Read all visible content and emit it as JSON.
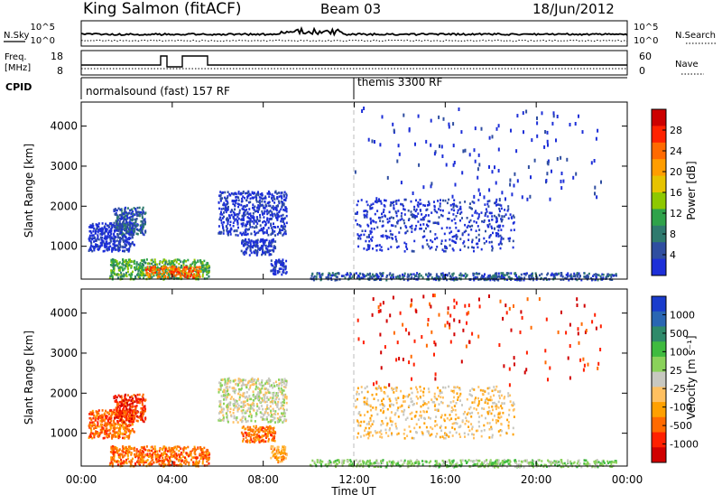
{
  "header": {
    "station": "King Salmon (fitACF)",
    "beam": "Beam 03",
    "date": "18/Jun/2012"
  },
  "summary": {
    "nsky_label": "N.Sky",
    "nsearch_label": "N.Search",
    "freq_label_1": "Freq.",
    "freq_label_2": "[MHz]",
    "nave_label": "Nave",
    "cpid_label": "CPID",
    "noise_ticks": {
      "top": "10^5",
      "bottom": "10^0"
    },
    "freq_ticks": [
      "18",
      "8"
    ],
    "nave_ticks": [
      "60",
      "0"
    ],
    "cpid_segments": [
      {
        "label": "normalsound (fast) 157 RF",
        "start_hour": 0
      },
      {
        "label": "themis 3300 RF",
        "start_hour": 12
      }
    ]
  },
  "chart_data": [
    {
      "type": "heatmap",
      "quantity": "power",
      "xlabel": "Time UT",
      "ylabel": "Slant Range [km]",
      "xlim": [
        0,
        24
      ],
      "ylim": [
        180,
        4600
      ],
      "x_ticks": [
        "00:00",
        "04:00",
        "08:00",
        "12:00",
        "16:00",
        "20:00",
        "00:00"
      ],
      "y_ticks": [
        1000,
        2000,
        3000,
        4000
      ],
      "colorbar": {
        "label": "Power [dB]",
        "ticks": [
          "28",
          "24",
          "20",
          "16",
          "12",
          "8",
          "4"
        ],
        "colors": [
          "#cc0000",
          "#ff2200",
          "#ff6a00",
          "#ff9d00",
          "#e6c300",
          "#8ec800",
          "#2fa24a",
          "#2f7a6e",
          "#2f4ea0",
          "#1d2fd8"
        ]
      },
      "regions": [
        {
          "t0": 0.3,
          "t1": 2.3,
          "r0": 900,
          "r1": 1600,
          "level": 9
        },
        {
          "t0": 1.4,
          "t1": 2.8,
          "r0": 1300,
          "r1": 2000,
          "level": 8
        },
        {
          "t0": 1.2,
          "t1": 5.6,
          "r0": 200,
          "r1": 700,
          "level": 6
        },
        {
          "t0": 2.8,
          "t1": 5.2,
          "r0": 250,
          "r1": 520,
          "level": 2
        },
        {
          "t0": 6.0,
          "t1": 9.0,
          "r0": 1300,
          "r1": 2400,
          "level": 9
        },
        {
          "t0": 7.0,
          "t1": 8.5,
          "r0": 800,
          "r1": 1200,
          "level": 9
        },
        {
          "t0": 8.3,
          "t1": 9.0,
          "r0": 300,
          "r1": 700,
          "level": 9
        },
        {
          "t0": 10.0,
          "t1": 23.5,
          "r0": 180,
          "r1": 360,
          "level": 8
        },
        {
          "t0": 12.0,
          "t1": 19.0,
          "r0": 900,
          "r1": 2200,
          "level": 9
        },
        {
          "t0": 12.0,
          "t1": 23.0,
          "r0": 2200,
          "r1": 4500,
          "level": 9
        }
      ]
    },
    {
      "type": "heatmap",
      "quantity": "velocity",
      "xlabel": "Time UT",
      "ylabel": "Slant Range [km]",
      "xlim": [
        0,
        24
      ],
      "ylim": [
        180,
        4600
      ],
      "x_ticks": [
        "00:00",
        "04:00",
        "08:00",
        "12:00",
        "16:00",
        "20:00",
        "00:00"
      ],
      "y_ticks": [
        1000,
        2000,
        3000,
        4000
      ],
      "colorbar": {
        "label": "Velocity [m s⁻¹]",
        "ticks": [
          "1000",
          "500",
          "100",
          "25",
          "-25",
          "-100",
          "-500",
          "-1000"
        ],
        "colors": [
          "#1a3ccc",
          "#2a66b3",
          "#2f8a6a",
          "#3fbb3f",
          "#8ad25a",
          "#c8c8c0",
          "#ffc060",
          "#ffa000",
          "#ff6a00",
          "#ff2000",
          "#d00000"
        ]
      },
      "regions": [
        {
          "t0": 0.3,
          "t1": 2.3,
          "r0": 900,
          "r1": 1600,
          "level": 8
        },
        {
          "t0": 1.4,
          "t1": 2.8,
          "r0": 1300,
          "r1": 2000,
          "level": 9
        },
        {
          "t0": 1.2,
          "t1": 5.6,
          "r0": 200,
          "r1": 700,
          "level": 8
        },
        {
          "t0": 6.0,
          "t1": 9.0,
          "r0": 1300,
          "r1": 2400,
          "level": 5
        },
        {
          "t0": 7.0,
          "t1": 8.5,
          "r0": 800,
          "r1": 1200,
          "level": 8
        },
        {
          "t0": 8.3,
          "t1": 9.0,
          "r0": 300,
          "r1": 700,
          "level": 7
        },
        {
          "t0": 10.0,
          "t1": 23.5,
          "r0": 180,
          "r1": 360,
          "level": 4
        },
        {
          "t0": 12.0,
          "t1": 19.0,
          "r0": 900,
          "r1": 2200,
          "level": 6
        },
        {
          "t0": 12.0,
          "t1": 23.0,
          "r0": 2200,
          "r1": 4500,
          "level": 9
        }
      ]
    }
  ]
}
